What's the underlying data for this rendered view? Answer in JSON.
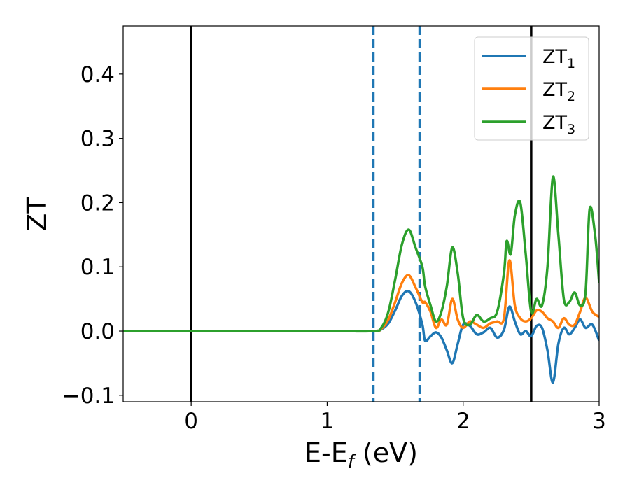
{
  "chart_data": {
    "type": "line",
    "xlabel": "E-E",
    "xlabel_sub": "f",
    "xlabel_unit": " (eV)",
    "ylabel": "ZT",
    "xlim": [
      -0.5,
      3.0
    ],
    "ylim": [
      -0.11,
      0.475
    ],
    "xticks": [
      0,
      1,
      2,
      3
    ],
    "xtick_labels": [
      "0",
      "1",
      "2",
      "3"
    ],
    "yticks": [
      -0.1,
      0.0,
      0.1,
      0.2,
      0.3,
      0.4
    ],
    "ytick_labels": [
      "−0.1",
      "0.0",
      "0.1",
      "0.2",
      "0.3",
      "0.4"
    ],
    "grid": false,
    "legend_position": "top-right",
    "vertical_lines": [
      {
        "x": 0.0,
        "style": "solid",
        "color": "#000000"
      },
      {
        "x": 1.34,
        "style": "dashed",
        "color": "#1f77b4"
      },
      {
        "x": 1.68,
        "style": "dashed",
        "color": "#1f77b4"
      },
      {
        "x": 2.5,
        "style": "solid",
        "color": "#000000"
      }
    ],
    "series": [
      {
        "name": "ZT",
        "name_sub": "1",
        "color": "#1f77b4",
        "x": [
          -0.5,
          0.0,
          1.0,
          1.34,
          1.4,
          1.45,
          1.5,
          1.55,
          1.6,
          1.65,
          1.7,
          1.72,
          1.76,
          1.8,
          1.84,
          1.88,
          1.92,
          1.96,
          2.0,
          2.05,
          2.1,
          2.15,
          2.2,
          2.25,
          2.3,
          2.34,
          2.38,
          2.42,
          2.46,
          2.5,
          2.54,
          2.58,
          2.62,
          2.66,
          2.7,
          2.74,
          2.78,
          2.82,
          2.86,
          2.9,
          2.95,
          3.0
        ],
        "y": [
          0.0,
          0.0,
          0.0,
          0.0,
          0.003,
          0.012,
          0.032,
          0.055,
          0.062,
          0.045,
          0.01,
          -0.015,
          -0.008,
          -0.002,
          -0.01,
          -0.03,
          -0.05,
          -0.02,
          0.01,
          0.008,
          -0.005,
          -0.002,
          0.005,
          -0.01,
          0.002,
          0.038,
          0.015,
          -0.005,
          0.0,
          -0.008,
          0.008,
          0.005,
          -0.03,
          -0.08,
          -0.02,
          0.005,
          -0.005,
          0.005,
          0.018,
          0.005,
          0.01,
          -0.015
        ]
      },
      {
        "name": "ZT",
        "name_sub": "2",
        "color": "#ff7f0e",
        "x": [
          -0.5,
          0.0,
          1.0,
          1.34,
          1.4,
          1.45,
          1.5,
          1.55,
          1.6,
          1.65,
          1.7,
          1.72,
          1.76,
          1.8,
          1.84,
          1.88,
          1.92,
          1.96,
          2.0,
          2.05,
          2.1,
          2.15,
          2.2,
          2.25,
          2.3,
          2.34,
          2.38,
          2.42,
          2.46,
          2.5,
          2.54,
          2.58,
          2.62,
          2.66,
          2.7,
          2.74,
          2.78,
          2.82,
          2.86,
          2.9,
          2.95,
          3.0
        ],
        "y": [
          0.0,
          0.0,
          0.0,
          0.0,
          0.004,
          0.018,
          0.045,
          0.075,
          0.087,
          0.068,
          0.045,
          0.045,
          0.03,
          0.005,
          0.018,
          0.01,
          0.05,
          0.018,
          0.005,
          0.015,
          0.01,
          0.005,
          0.012,
          0.015,
          0.02,
          0.11,
          0.04,
          0.02,
          0.015,
          0.02,
          0.032,
          0.03,
          0.02,
          0.015,
          0.005,
          0.02,
          0.01,
          0.01,
          0.03,
          0.052,
          0.03,
          0.022
        ]
      },
      {
        "name": "ZT",
        "name_sub": "3",
        "color": "#2ca02c",
        "x": [
          -0.5,
          0.0,
          1.0,
          1.34,
          1.4,
          1.45,
          1.5,
          1.55,
          1.6,
          1.65,
          1.7,
          1.72,
          1.76,
          1.8,
          1.84,
          1.88,
          1.92,
          1.96,
          2.0,
          2.05,
          2.1,
          2.15,
          2.2,
          2.25,
          2.3,
          2.32,
          2.35,
          2.38,
          2.42,
          2.46,
          2.5,
          2.54,
          2.58,
          2.62,
          2.66,
          2.7,
          2.74,
          2.78,
          2.82,
          2.86,
          2.9,
          2.93,
          2.97,
          3.0
        ],
        "y": [
          0.0,
          0.0,
          0.0,
          0.0,
          0.006,
          0.03,
          0.08,
          0.135,
          0.158,
          0.13,
          0.1,
          0.07,
          0.04,
          0.015,
          0.03,
          0.07,
          0.13,
          0.09,
          0.02,
          0.01,
          0.025,
          0.015,
          0.02,
          0.03,
          0.09,
          0.14,
          0.12,
          0.18,
          0.2,
          0.12,
          0.03,
          0.05,
          0.04,
          0.1,
          0.24,
          0.15,
          0.05,
          0.045,
          0.06,
          0.04,
          0.06,
          0.19,
          0.15,
          0.075
        ]
      }
    ]
  }
}
